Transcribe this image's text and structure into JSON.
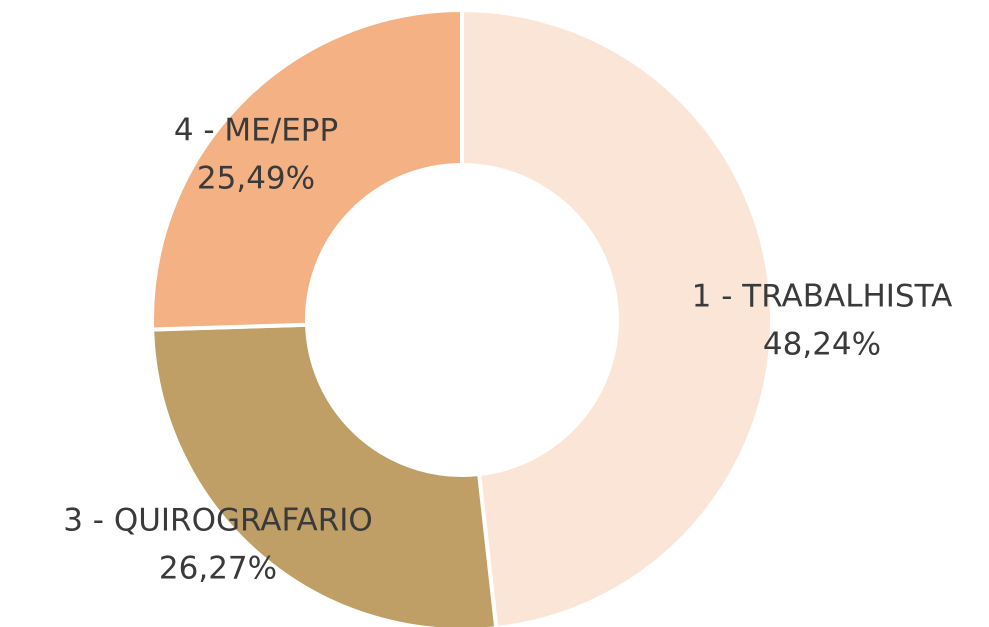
{
  "chart_data": {
    "type": "donut",
    "categories": [
      "1 - TRABALHISTA",
      "3 - QUIROGRAFARIO",
      "4 - ME/EPP"
    ],
    "values": [
      48.24,
      26.27,
      25.49
    ],
    "value_labels": [
      "48,24%",
      "26,27%",
      "25,49%"
    ],
    "colors": [
      "#fbe5d6",
      "#bf9f66",
      "#f4b183"
    ]
  }
}
